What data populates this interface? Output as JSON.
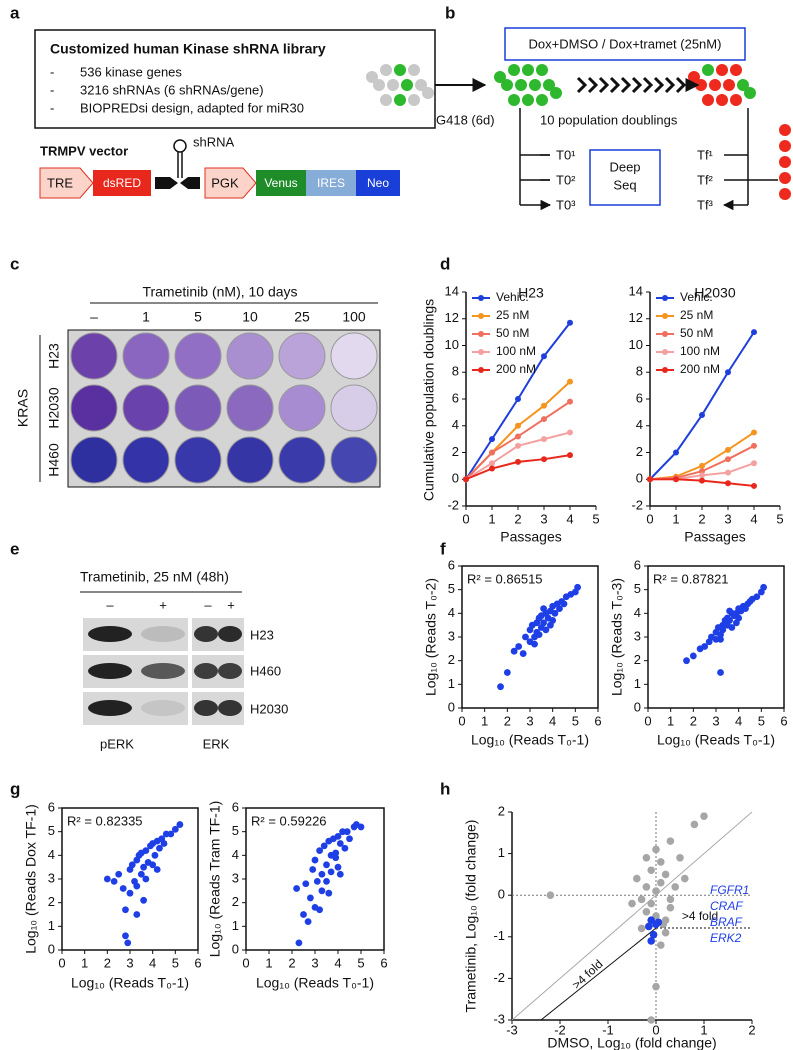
{
  "panel_labels": [
    "a",
    "b",
    "c",
    "d",
    "e",
    "f",
    "g",
    "h"
  ],
  "panel_a": {
    "title": "Customized human Kinase shRNA library",
    "bullet_marker": "-",
    "bullets": [
      "536 kinase genes",
      "3216 shRNAs (6 shRNAs/gene)",
      "BIOPREDsi design, adapted for miR30"
    ],
    "vector_title": "TRMPV vector",
    "hairpin_label": "shRNA",
    "elements": [
      "TRE",
      "dsRED",
      "PGK",
      "Venus",
      "IRES",
      "Neo"
    ]
  },
  "panel_b": {
    "condition": "Dox+DMSO / Dox+tramet (25nM)",
    "selection": "G418 (6d)",
    "expansion": "10 population doublings",
    "t0": [
      "T0¹",
      "T0²",
      "T0³"
    ],
    "deep_seq": [
      "Deep",
      "Seq"
    ],
    "tf": [
      "Tf¹",
      "Tf²",
      "Tf³"
    ]
  },
  "panel_c": {
    "title": "Trametinib (nM), 10 days",
    "doses": [
      "–",
      "1",
      "5",
      "10",
      "25",
      "100"
    ],
    "group": "KRAS",
    "cell_lines": [
      "H23",
      "H2030",
      "H460"
    ]
  },
  "panel_e": {
    "title": "Trametinib, 25 nM  (48h)",
    "treatment": [
      "–",
      "+",
      "–",
      "+"
    ],
    "cell_lines": [
      "H23",
      "H460",
      "H2030"
    ],
    "antibodies": [
      "pERK",
      "ERK"
    ]
  },
  "chart_data": [
    {
      "type": "line",
      "title": "H23",
      "x_label": "Passages",
      "y_label": "Cumulative population doublings",
      "x": [
        0,
        1,
        2,
        3,
        4
      ],
      "xlim": [
        0,
        5
      ],
      "xticks": [
        0,
        1,
        2,
        3,
        4,
        5
      ],
      "ylim": [
        -2,
        14
      ],
      "yticks": [
        -2,
        0,
        2,
        4,
        6,
        8,
        10,
        12,
        14
      ],
      "legend": "upper left",
      "series": [
        {
          "name": "Vehic.",
          "color": "#1f3fdc",
          "values": [
            0,
            3,
            6,
            9.2,
            11.7
          ]
        },
        {
          "name": "25 nM",
          "color": "#f5941e",
          "values": [
            0,
            2,
            4,
            5.5,
            7.3
          ]
        },
        {
          "name": "50 nM",
          "color": "#f07060",
          "values": [
            0,
            2,
            3.2,
            4.5,
            5.8
          ]
        },
        {
          "name": "100 nM",
          "color": "#f5a0a0",
          "values": [
            0,
            1.2,
            2.5,
            3,
            3.5
          ]
        },
        {
          "name": "200 nM",
          "color": "#e8281c",
          "values": [
            0,
            0.8,
            1.3,
            1.5,
            1.8
          ]
        }
      ]
    },
    {
      "type": "line",
      "title": "H2030",
      "x_label": "Passages",
      "x": [
        0,
        1,
        2,
        3,
        4
      ],
      "xlim": [
        0,
        5
      ],
      "xticks": [
        0,
        1,
        2,
        3,
        4,
        5
      ],
      "ylim": [
        -2,
        14
      ],
      "yticks": [
        -2,
        0,
        2,
        4,
        6,
        8,
        10,
        12,
        14
      ],
      "legend": "upper left",
      "series": [
        {
          "name": "Vehic.",
          "color": "#1f3fdc",
          "values": [
            0,
            2,
            4.8,
            8,
            11
          ]
        },
        {
          "name": "25 nM",
          "color": "#f5941e",
          "values": [
            0,
            0.2,
            1,
            2.2,
            3.5
          ]
        },
        {
          "name": "50 nM",
          "color": "#f07060",
          "values": [
            0,
            0.1,
            0.6,
            1.5,
            2.5
          ]
        },
        {
          "name": "100 nM",
          "color": "#f5a0a0",
          "values": [
            0,
            0,
            0.3,
            0.5,
            1.2
          ]
        },
        {
          "name": "200 nM",
          "color": "#e8281c",
          "values": [
            0,
            0,
            -0.1,
            -0.3,
            -0.5
          ]
        }
      ]
    },
    {
      "type": "scatter",
      "annotation": "R² = 0.86515",
      "x_label": "Log₁₀ (Reads T₀-1)",
      "y_label": "Log₁₀ (Reads T₀-2)",
      "xlim": [
        0,
        6
      ],
      "xticks": [
        0,
        1,
        2,
        3,
        4,
        5,
        6
      ],
      "ylim": [
        0,
        6
      ],
      "yticks": [
        0,
        1,
        2,
        3,
        4,
        5,
        6
      ],
      "series": [
        {
          "color": "#1f3fe6",
          "x": [
            1.7,
            2.0,
            2.3,
            2.5,
            2.7,
            2.8,
            3.0,
            3.0,
            3.1,
            3.2,
            3.3,
            3.3,
            3.4,
            3.5,
            3.5,
            3.6,
            3.7,
            3.7,
            3.8,
            3.9,
            4.0,
            4.0,
            4.1,
            4.2,
            4.3,
            4.4,
            4.5,
            4.6,
            4.8,
            5.0,
            5.1,
            3.4,
            3.6,
            3.9,
            3.2
          ],
          "y": [
            0.9,
            1.5,
            2.4,
            2.6,
            2.3,
            3.0,
            2.8,
            3.3,
            3.5,
            3.0,
            3.6,
            3.2,
            3.8,
            3.4,
            3.9,
            3.6,
            3.3,
            4.0,
            3.8,
            4.1,
            3.7,
            4.3,
            4.0,
            4.4,
            4.2,
            4.5,
            4.4,
            4.7,
            4.8,
            4.9,
            5.1,
            3.1,
            4.2,
            3.5,
            2.7
          ]
        }
      ]
    },
    {
      "type": "scatter",
      "annotation": "R² = 0.87821",
      "x_label": "Log₁₀ (Reads T₀-1)",
      "y_label": "Log₁₀ (Reads T₀-3)",
      "xlim": [
        0,
        6
      ],
      "xticks": [
        0,
        1,
        2,
        3,
        4,
        5,
        6
      ],
      "ylim": [
        0,
        6
      ],
      "yticks": [
        0,
        1,
        2,
        3,
        4,
        5,
        6
      ],
      "series": [
        {
          "color": "#1f3fe6",
          "x": [
            1.7,
            2.0,
            2.3,
            2.5,
            2.7,
            2.8,
            3.0,
            3.0,
            3.1,
            3.2,
            3.3,
            3.3,
            3.4,
            3.5,
            3.5,
            3.6,
            3.7,
            3.7,
            3.8,
            3.9,
            4.0,
            4.0,
            4.1,
            4.2,
            4.3,
            4.4,
            4.5,
            4.6,
            4.8,
            5.0,
            5.1,
            3.2,
            3.6,
            3.9,
            3.2
          ],
          "y": [
            2.0,
            2.2,
            2.5,
            2.6,
            2.8,
            3.0,
            2.9,
            3.2,
            3.4,
            3.1,
            3.5,
            3.3,
            3.7,
            3.5,
            3.8,
            3.7,
            3.4,
            4.0,
            3.9,
            4.0,
            3.8,
            4.2,
            4.1,
            4.3,
            4.2,
            4.4,
            4.5,
            4.6,
            4.7,
            4.9,
            5.1,
            1.5,
            4.1,
            3.6,
            2.9
          ]
        }
      ]
    },
    {
      "type": "scatter",
      "annotation": "R² = 0.82335",
      "x_label": "Log₁₀ (Reads T₀-1)",
      "y_label": "Log₁₀ (Reads Dox TF-1)",
      "xlim": [
        0,
        6
      ],
      "xticks": [
        0,
        1,
        2,
        3,
        4,
        5,
        6
      ],
      "ylim": [
        0,
        6
      ],
      "yticks": [
        0,
        1,
        2,
        3,
        4,
        5,
        6
      ],
      "series": [
        {
          "color": "#1f3fe6",
          "x": [
            2.0,
            2.3,
            2.5,
            2.7,
            2.8,
            2.8,
            3.0,
            3.0,
            3.1,
            3.2,
            3.3,
            3.3,
            3.4,
            3.5,
            3.5,
            3.6,
            3.7,
            3.7,
            3.8,
            3.9,
            4.0,
            4.0,
            4.1,
            4.2,
            4.3,
            4.4,
            4.5,
            4.6,
            4.8,
            5.0,
            5.2,
            2.9,
            3.3,
            3.6,
            4.2
          ],
          "y": [
            3.0,
            2.9,
            3.2,
            2.6,
            0.6,
            1.7,
            3.4,
            2.4,
            3.6,
            2.9,
            3.8,
            2.7,
            4.0,
            3.2,
            4.1,
            3.5,
            3.0,
            4.2,
            3.7,
            4.4,
            3.6,
            4.5,
            4.0,
            4.6,
            4.3,
            4.7,
            4.5,
            4.9,
            4.9,
            5.1,
            5.3,
            0.3,
            1.5,
            2.1,
            3.4
          ]
        }
      ]
    },
    {
      "type": "scatter",
      "annotation": "R² = 0.59226",
      "x_label": "Log₁₀ (Reads T₀-1)",
      "y_label": "Log₁₀ (Reads Tram TF-1)",
      "xlim": [
        0,
        6
      ],
      "xticks": [
        0,
        1,
        2,
        3,
        4,
        5,
        6
      ],
      "ylim": [
        0,
        6
      ],
      "yticks": [
        0,
        1,
        2,
        3,
        4,
        5,
        6
      ],
      "series": [
        {
          "color": "#1f3fe6",
          "x": [
            2.3,
            2.5,
            2.6,
            2.8,
            2.9,
            3.0,
            3.0,
            3.1,
            3.2,
            3.3,
            3.3,
            3.4,
            3.5,
            3.5,
            3.6,
            3.7,
            3.7,
            3.8,
            3.9,
            4.0,
            4.0,
            4.1,
            4.2,
            4.3,
            4.4,
            4.5,
            4.7,
            4.8,
            5.0,
            2.2,
            2.7,
            3.2,
            3.6,
            4.1,
            3.9
          ],
          "y": [
            0.3,
            1.5,
            2.8,
            2.2,
            3.4,
            1.8,
            3.8,
            2.9,
            4.2,
            3.2,
            2.5,
            4.4,
            3.6,
            2.9,
            4.6,
            4.0,
            3.3,
            4.7,
            3.9,
            4.8,
            3.5,
            4.5,
            5.0,
            4.3,
            5.0,
            4.7,
            5.2,
            5.3,
            5.2,
            2.6,
            1.2,
            1.7,
            2.4,
            3.2,
            4.1
          ]
        }
      ]
    },
    {
      "type": "scatter",
      "x_label": "DMSO, Log₁₀ (fold change)",
      "y_label": "Trametinib, Log₁₀ (fold change)",
      "xlim": [
        -3,
        2
      ],
      "xticks": [
        -3,
        -2,
        -1,
        0,
        1,
        2
      ],
      "ylim": [
        -3,
        2
      ],
      "yticks": [
        -3,
        -2,
        -1,
        0,
        1,
        2
      ],
      "annotations": [
        ">4 fold",
        ">4 fold"
      ],
      "gene_labels": [
        "FGFR1",
        "CRAF",
        "BRAF",
        "ERK2"
      ],
      "series": [
        {
          "color": "#a6a6a6",
          "x": [
            0.0,
            0.1,
            -0.1,
            0.2,
            -0.2,
            0.3,
            -0.3,
            0.1,
            -0.1,
            0.0,
            0.4,
            -0.4,
            0.2,
            -0.2,
            0.5,
            0.6,
            0.3,
            -0.5,
            0.1,
            0.0,
            -0.1,
            0.8,
            1.0,
            -2.2,
            0.2,
            -0.2,
            0.3,
            0.0,
            -0.3,
            0.15
          ],
          "y": [
            0.1,
            0.3,
            -0.2,
            0.5,
            0.2,
            -0.3,
            -0.1,
            0.8,
            0.6,
            -0.5,
            0.2,
            0.4,
            -0.6,
            -0.4,
            0.9,
            0.4,
            1.3,
            -0.2,
            -1.2,
            -2.2,
            -3.0,
            1.7,
            1.9,
            0.0,
            -0.9,
            0.9,
            -0.1,
            1.1,
            -0.8,
            -0.7
          ]
        },
        {
          "color": "#1f3fe6",
          "x": [
            -0.15,
            -0.1,
            0.0,
            -0.05,
            0.05,
            -0.1
          ],
          "y": [
            -0.75,
            -0.6,
            -0.7,
            -0.95,
            -0.65,
            -1.1
          ]
        }
      ]
    }
  ]
}
